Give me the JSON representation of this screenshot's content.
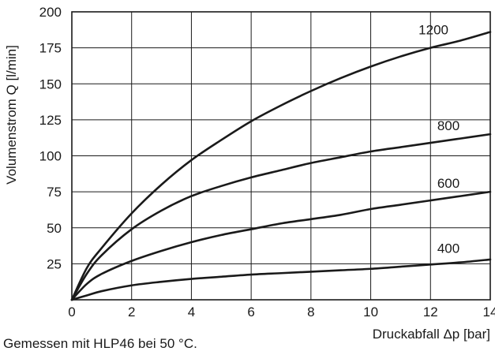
{
  "chart_data": {
    "type": "line",
    "title": "",
    "xlabel": "Druckabfall Δp [bar]",
    "ylabel": "Volumenstrom Q [l/min]",
    "xlim": [
      0,
      14
    ],
    "ylim": [
      0,
      200
    ],
    "x_ticks": [
      0,
      2,
      4,
      6,
      8,
      10,
      12,
      14
    ],
    "y_ticks": [
      25,
      50,
      75,
      100,
      125,
      150,
      175,
      200
    ],
    "grid": true,
    "line_color": "#1a1a1a",
    "series": [
      {
        "name": "1200",
        "x": [
          0,
          0.5,
          1,
          2,
          3,
          4,
          5,
          6,
          7,
          8,
          9,
          10,
          11,
          12,
          13,
          14
        ],
        "y": [
          0,
          22,
          36,
          60,
          80,
          97,
          111,
          124,
          135,
          145,
          154,
          162,
          169,
          175,
          180,
          186
        ]
      },
      {
        "name": "800",
        "x": [
          0,
          0.5,
          1,
          2,
          3,
          4,
          5,
          6,
          7,
          8,
          9,
          10,
          11,
          12,
          13,
          14
        ],
        "y": [
          0,
          18,
          31,
          49,
          62,
          72,
          79,
          85,
          90,
          95,
          99,
          103,
          106,
          109,
          112,
          115
        ]
      },
      {
        "name": "600",
        "x": [
          0,
          0.5,
          1,
          2,
          3,
          4,
          5,
          6,
          7,
          8,
          9,
          10,
          11,
          12,
          13,
          14
        ],
        "y": [
          0,
          11,
          18,
          27,
          34,
          40,
          45,
          49,
          53,
          56,
          59,
          63,
          66,
          69,
          72,
          75
        ]
      },
      {
        "name": "400",
        "x": [
          0,
          0.5,
          1,
          2,
          3,
          4,
          5,
          6,
          7,
          8,
          9,
          10,
          11,
          12,
          13,
          14
        ],
        "y": [
          0,
          3,
          6,
          10,
          12.5,
          14.5,
          16,
          17.5,
          18.5,
          19.5,
          20.5,
          21.5,
          23,
          24.5,
          26,
          28
        ]
      }
    ]
  },
  "footnote": "Gemessen mit HLP46 bei 50 °C."
}
